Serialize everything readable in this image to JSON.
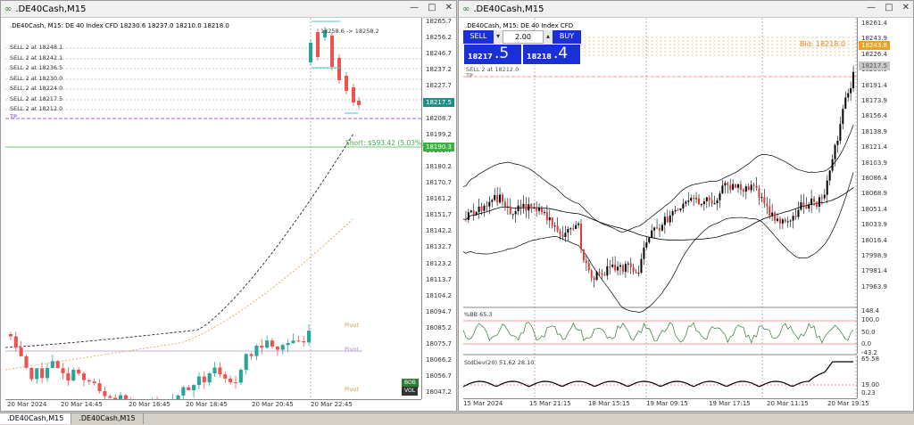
{
  "left_window": {
    "title": ".DE40Cash,M15",
    "symbol_line": ".DE40Cash, M15:  DE 40 Index CFD  18230.6 18237.0 18210.0 18218.0",
    "price_ticks": [
      "18265.7",
      "18256.2",
      "18246.7",
      "18237.2",
      "18227.7",
      "18218.2",
      "18208.7",
      "18199.2",
      "18189.7",
      "18180.2",
      "18170.7",
      "18161.2",
      "18151.7",
      "18142.2",
      "18132.7",
      "18123.2",
      "18113.7",
      "18104.2",
      "18094.7",
      "18085.2",
      "18075.7",
      "18066.2",
      "18056.7",
      "18047.2"
    ],
    "time_ticks": [
      "20 Mar 2024",
      "20 Mar 14:45",
      "20 Mar 16:45",
      "20 Mar 18:45",
      "20 Mar 20:45",
      "20 Mar 22:45"
    ],
    "order_labels": [
      "SELL 2 at 18248.1",
      "SELL 2 at 18242.1",
      "SELL 2 at 18236.5",
      "SELL 2 at 18230.0",
      "SELL 2 at 18224.0",
      "SELL 2 at 18217.5",
      "SELL 2 at 18212.0"
    ],
    "tp_label": "TP",
    "trade_note": "18258.6 -> 18258.2",
    "short_label": "Short:  $593.42 (5.03%)",
    "current_price_tag": "18217.5",
    "short_tag": "18190.3",
    "pivot_labels": [
      "Pivot",
      "Pivot",
      "Pivot"
    ],
    "badge_top": "BOB",
    "badge_bottom": "VOL",
    "colors": {
      "bull": "#26a69a",
      "bear": "#ef5350",
      "tp": "#7a2fd0",
      "short_line": "#4caf50",
      "tag_green": "#3cb043",
      "tag_teal": "#1f8f84"
    }
  },
  "right_window": {
    "title": ".DE40Cash,M15",
    "symbol_line": ".DE40Cash, M15:  DE 40 Index CFD",
    "trade_panel": {
      "sell_label": "SELL",
      "buy_label": "BUY",
      "volume": "2.00",
      "sell_price_main": "18217",
      "sell_price_frac": ".5",
      "buy_price_main": "18218",
      "buy_price_frac": ".4"
    },
    "sell_note": "SELL 2 at 18212.0",
    "tp_label": "TP",
    "bid_label": "Bid: 18218.0",
    "price_ticks": [
      "18261.4",
      "18243.9",
      "18226.4",
      "18208.9",
      "18191.4",
      "18173.9",
      "18156.4",
      "18138.9",
      "18121.4",
      "18103.9",
      "18086.4",
      "18068.9",
      "18051.4",
      "18033.9",
      "18016.4",
      "17998.9",
      "17981.4",
      "17963.9"
    ],
    "right_tags": [
      "18243.8",
      "18217.5"
    ],
    "bb_label": "%BB 65.3",
    "bb_ticks": [
      "148.4",
      "100.0",
      "50.0",
      "0.0",
      "-43.2"
    ],
    "sd_label": "StdDev(20) 51.62 28.10",
    "sd_ticks": [
      "65.58",
      "19.00",
      "0.23"
    ],
    "time_ticks": [
      "15 Mar 2024",
      "15 Mar 21:15",
      "18 Mar 15:15",
      "19 Mar 09:15",
      "19 Mar 17:15",
      "20 Mar 11:15",
      "20 Mar 19:15"
    ],
    "colors": {
      "candle_bull": "#000000",
      "candle_bear": "#e53935",
      "band": "#000000",
      "bb_line": "#2e7d32",
      "sd_line": "#000000",
      "ref_red": "#e53935"
    }
  },
  "bottom_tabs": [
    ".DE40Cash,M15",
    ".DE40Cash,M15"
  ]
}
